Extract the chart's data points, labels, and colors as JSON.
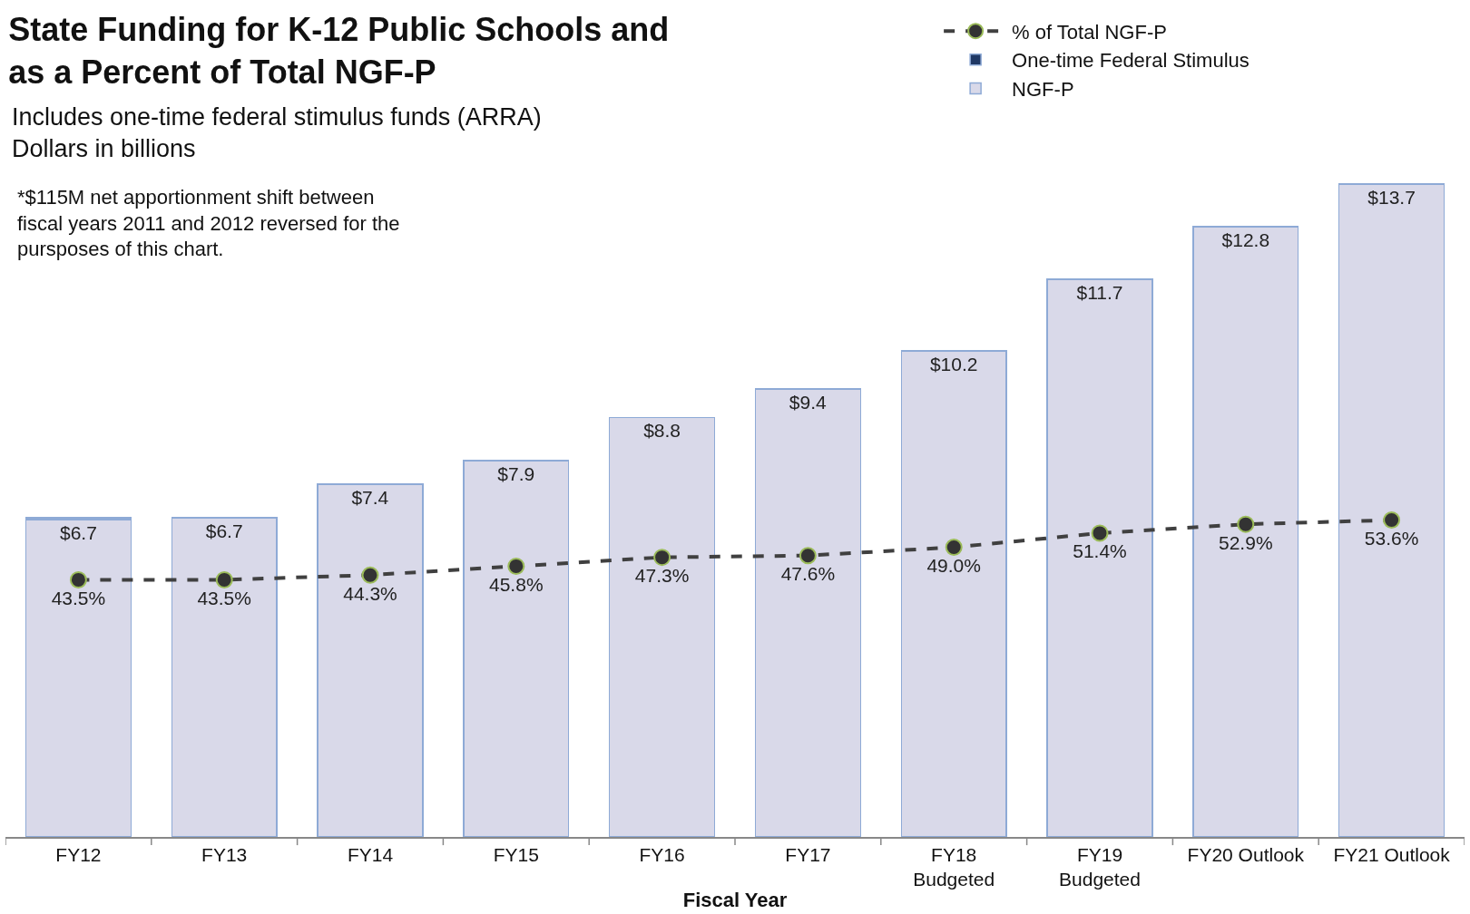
{
  "chart_data": {
    "type": "bar",
    "title": "State Funding for K-12 Public Schools and\nas a Percent of Total NGF-P",
    "subtitle": "Includes one-time federal stimulus funds (ARRA)\nDollars in billions",
    "xlabel": "Fiscal Year",
    "annotations": [
      "*$115M net apportionment shift between\nfiscal years 2011 and 2012 reversed for the\npursposes of this chart."
    ],
    "categories": [
      "FY12",
      "FY13",
      "FY14",
      "FY15",
      "FY16",
      "FY17",
      "FY18\nBudgeted",
      "FY19\nBudgeted",
      "FY20 Outlook",
      "FY21 Outlook"
    ],
    "stacked": true,
    "tick_labels": "x",
    "grid": false,
    "legend": "top right",
    "series": [
      {
        "name": "NGF-P",
        "color": "#d9d9e9",
        "values": [
          6.66,
          6.7,
          7.4,
          7.9,
          8.8,
          9.4,
          10.2,
          11.7,
          12.8,
          13.7
        ],
        "value_labels": [
          "$6.7",
          "$6.7",
          "$7.4",
          "$7.9",
          "$8.8",
          "$9.4",
          "$10.2",
          "$11.7",
          "$12.8",
          "$13.7"
        ]
      },
      {
        "name": "One-time Federal Stimulus",
        "color": "#1f3864",
        "values": [
          0.04,
          null,
          null,
          null,
          null,
          null,
          null,
          null,
          null,
          null
        ]
      },
      {
        "name": "% of Total NGF-P",
        "type": "line",
        "axis": "y2",
        "color": "#404040",
        "marker": "circle",
        "line_style": "dashed",
        "values": [
          43.5,
          43.5,
          44.3,
          45.8,
          47.3,
          47.6,
          49.0,
          51.4,
          52.9,
          53.6
        ],
        "value_labels": [
          "43.5%",
          "43.5%",
          "44.3%",
          "45.8%",
          "47.3%",
          "47.6%",
          "49.0%",
          "51.4%",
          "52.9%",
          "53.6%"
        ]
      }
    ]
  }
}
